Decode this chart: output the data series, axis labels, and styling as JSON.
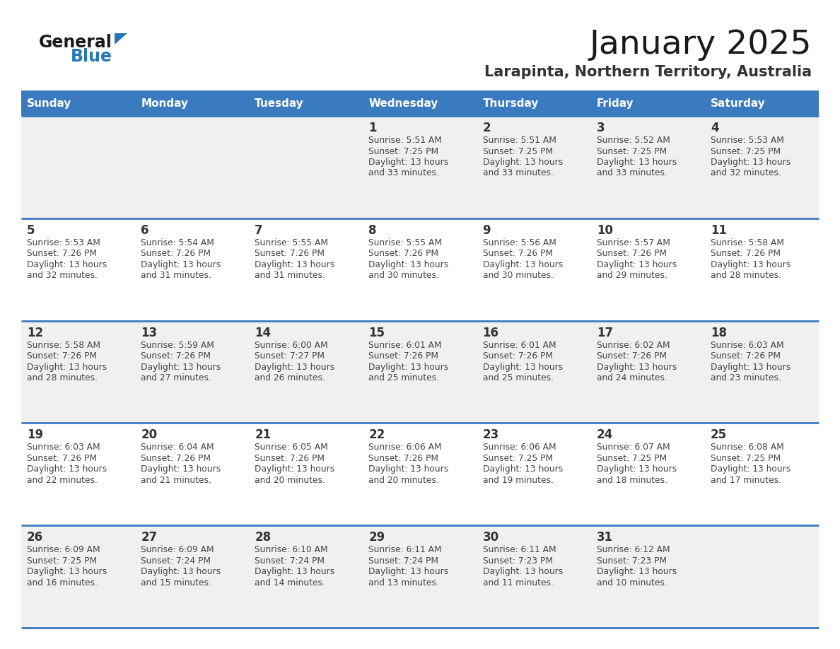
{
  "title": "January 2025",
  "subtitle": "Larapinta, Northern Territory, Australia",
  "days_of_week": [
    "Sunday",
    "Monday",
    "Tuesday",
    "Wednesday",
    "Thursday",
    "Friday",
    "Saturday"
  ],
  "header_bg_color": "#3a7abf",
  "header_text_color": "#ffffff",
  "cell_bg_even": "#f0f0f0",
  "cell_bg_odd": "#ffffff",
  "separator_color": "#3a7abf",
  "title_color": "#1a1a1a",
  "subtitle_color": "#333333",
  "day_number_color": "#333333",
  "cell_text_color": "#444444",
  "logo_general_color": "#1a1a1a",
  "logo_blue_color": "#2878b8",
  "calendar_data": [
    [
      null,
      null,
      null,
      {
        "day": 1,
        "sunrise": "5:51 AM",
        "sunset": "7:25 PM",
        "daylight_hours": 13,
        "daylight_minutes": 33
      },
      {
        "day": 2,
        "sunrise": "5:51 AM",
        "sunset": "7:25 PM",
        "daylight_hours": 13,
        "daylight_minutes": 33
      },
      {
        "day": 3,
        "sunrise": "5:52 AM",
        "sunset": "7:25 PM",
        "daylight_hours": 13,
        "daylight_minutes": 33
      },
      {
        "day": 4,
        "sunrise": "5:53 AM",
        "sunset": "7:25 PM",
        "daylight_hours": 13,
        "daylight_minutes": 32
      }
    ],
    [
      {
        "day": 5,
        "sunrise": "5:53 AM",
        "sunset": "7:26 PM",
        "daylight_hours": 13,
        "daylight_minutes": 32
      },
      {
        "day": 6,
        "sunrise": "5:54 AM",
        "sunset": "7:26 PM",
        "daylight_hours": 13,
        "daylight_minutes": 31
      },
      {
        "day": 7,
        "sunrise": "5:55 AM",
        "sunset": "7:26 PM",
        "daylight_hours": 13,
        "daylight_minutes": 31
      },
      {
        "day": 8,
        "sunrise": "5:55 AM",
        "sunset": "7:26 PM",
        "daylight_hours": 13,
        "daylight_minutes": 30
      },
      {
        "day": 9,
        "sunrise": "5:56 AM",
        "sunset": "7:26 PM",
        "daylight_hours": 13,
        "daylight_minutes": 30
      },
      {
        "day": 10,
        "sunrise": "5:57 AM",
        "sunset": "7:26 PM",
        "daylight_hours": 13,
        "daylight_minutes": 29
      },
      {
        "day": 11,
        "sunrise": "5:58 AM",
        "sunset": "7:26 PM",
        "daylight_hours": 13,
        "daylight_minutes": 28
      }
    ],
    [
      {
        "day": 12,
        "sunrise": "5:58 AM",
        "sunset": "7:26 PM",
        "daylight_hours": 13,
        "daylight_minutes": 28
      },
      {
        "day": 13,
        "sunrise": "5:59 AM",
        "sunset": "7:26 PM",
        "daylight_hours": 13,
        "daylight_minutes": 27
      },
      {
        "day": 14,
        "sunrise": "6:00 AM",
        "sunset": "7:27 PM",
        "daylight_hours": 13,
        "daylight_minutes": 26
      },
      {
        "day": 15,
        "sunrise": "6:01 AM",
        "sunset": "7:26 PM",
        "daylight_hours": 13,
        "daylight_minutes": 25
      },
      {
        "day": 16,
        "sunrise": "6:01 AM",
        "sunset": "7:26 PM",
        "daylight_hours": 13,
        "daylight_minutes": 25
      },
      {
        "day": 17,
        "sunrise": "6:02 AM",
        "sunset": "7:26 PM",
        "daylight_hours": 13,
        "daylight_minutes": 24
      },
      {
        "day": 18,
        "sunrise": "6:03 AM",
        "sunset": "7:26 PM",
        "daylight_hours": 13,
        "daylight_minutes": 23
      }
    ],
    [
      {
        "day": 19,
        "sunrise": "6:03 AM",
        "sunset": "7:26 PM",
        "daylight_hours": 13,
        "daylight_minutes": 22
      },
      {
        "day": 20,
        "sunrise": "6:04 AM",
        "sunset": "7:26 PM",
        "daylight_hours": 13,
        "daylight_minutes": 21
      },
      {
        "day": 21,
        "sunrise": "6:05 AM",
        "sunset": "7:26 PM",
        "daylight_hours": 13,
        "daylight_minutes": 20
      },
      {
        "day": 22,
        "sunrise": "6:06 AM",
        "sunset": "7:26 PM",
        "daylight_hours": 13,
        "daylight_minutes": 20
      },
      {
        "day": 23,
        "sunrise": "6:06 AM",
        "sunset": "7:25 PM",
        "daylight_hours": 13,
        "daylight_minutes": 19
      },
      {
        "day": 24,
        "sunrise": "6:07 AM",
        "sunset": "7:25 PM",
        "daylight_hours": 13,
        "daylight_minutes": 18
      },
      {
        "day": 25,
        "sunrise": "6:08 AM",
        "sunset": "7:25 PM",
        "daylight_hours": 13,
        "daylight_minutes": 17
      }
    ],
    [
      {
        "day": 26,
        "sunrise": "6:09 AM",
        "sunset": "7:25 PM",
        "daylight_hours": 13,
        "daylight_minutes": 16
      },
      {
        "day": 27,
        "sunrise": "6:09 AM",
        "sunset": "7:24 PM",
        "daylight_hours": 13,
        "daylight_minutes": 15
      },
      {
        "day": 28,
        "sunrise": "6:10 AM",
        "sunset": "7:24 PM",
        "daylight_hours": 13,
        "daylight_minutes": 14
      },
      {
        "day": 29,
        "sunrise": "6:11 AM",
        "sunset": "7:24 PM",
        "daylight_hours": 13,
        "daylight_minutes": 13
      },
      {
        "day": 30,
        "sunrise": "6:11 AM",
        "sunset": "7:23 PM",
        "daylight_hours": 13,
        "daylight_minutes": 11
      },
      {
        "day": 31,
        "sunrise": "6:12 AM",
        "sunset": "7:23 PM",
        "daylight_hours": 13,
        "daylight_minutes": 10
      },
      null
    ]
  ]
}
